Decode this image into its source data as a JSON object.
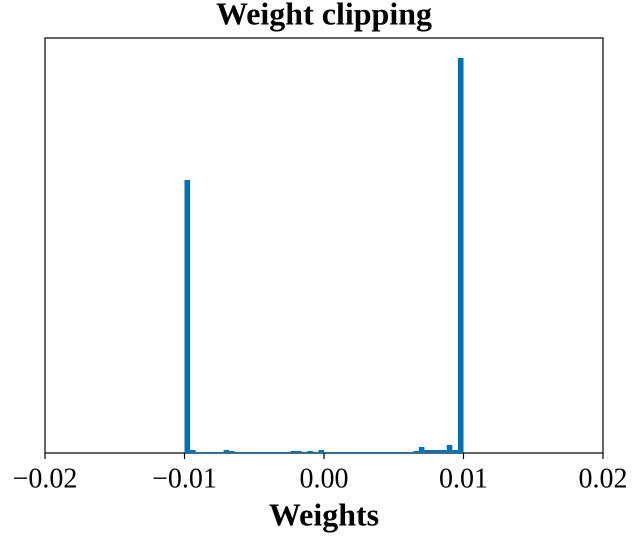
{
  "chart_data": {
    "type": "histogram",
    "title": "Weight clipping",
    "x_label": "Weights",
    "bins": [
      -0.01,
      -0.0096,
      -0.0092,
      -0.0088,
      -0.0084,
      -0.008,
      -0.0076,
      -0.0072,
      -0.0068,
      -0.0064,
      -0.006,
      -0.0056,
      -0.0052,
      -0.0048,
      -0.0044,
      -0.004,
      -0.0036,
      -0.0032,
      -0.0028,
      -0.0024,
      -0.002,
      -0.0016,
      -0.0012,
      -0.0008,
      -0.0004,
      0,
      0.0004,
      0.0008,
      0.0012,
      0.0016,
      0.002,
      0.0024,
      0.0028,
      0.0032,
      0.0036,
      0.004,
      0.0044,
      0.0048,
      0.0052,
      0.0056,
      0.006,
      0.0064,
      0.0068,
      0.0072,
      0.0076,
      0.008,
      0.0084,
      0.0088,
      0.0092,
      0.0096,
      0.01
    ],
    "counts": [
      273,
      3,
      1,
      1,
      1,
      1,
      1,
      3,
      2,
      1,
      1,
      1,
      1,
      1,
      1,
      1,
      1,
      1,
      1,
      2,
      2,
      1,
      2,
      1,
      3,
      1,
      1,
      1,
      1,
      1,
      1,
      1,
      1,
      1,
      1,
      1,
      1,
      1,
      1,
      1,
      1,
      2,
      6,
      3,
      3,
      3,
      3,
      8,
      3,
      395
    ],
    "color": "#0072b2",
    "xlim": [
      -0.02,
      0.02
    ],
    "xticks": [
      {
        "value": -0.02,
        "label": "−0.02"
      },
      {
        "value": -0.01,
        "label": "−0.01"
      },
      {
        "value": 0,
        "label": "0.00"
      },
      {
        "value": 0.01,
        "label": "0.01"
      },
      {
        "value": 0.02,
        "label": "0.02"
      }
    ],
    "ylim": [
      0,
      415
    ]
  }
}
